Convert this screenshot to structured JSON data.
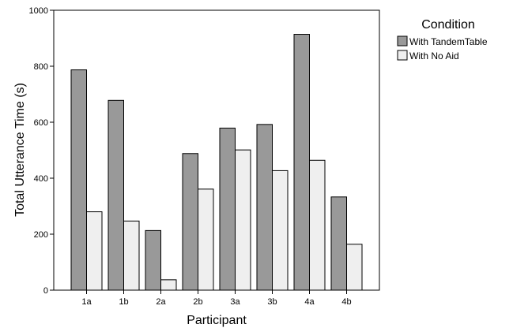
{
  "chart_data": {
    "type": "bar",
    "xlabel": "Participant",
    "ylabel": "Total Utterance Time (s)",
    "categories": [
      "1a",
      "1b",
      "2a",
      "2b",
      "3a",
      "3b",
      "4a",
      "4b"
    ],
    "ylim": [
      0,
      1000
    ],
    "yticks": [
      0,
      200,
      400,
      600,
      800,
      1000
    ],
    "grid": false,
    "legend": {
      "title": "Condition",
      "placement": "top-right outside"
    },
    "series": [
      {
        "name": "With TandemTable",
        "color": "#999999",
        "values": [
          787,
          678,
          213,
          488,
          579,
          592,
          914,
          333
        ]
      },
      {
        "name": "With No Aid",
        "color": "#efefef",
        "values": [
          280,
          247,
          37,
          361,
          501,
          427,
          464,
          164
        ]
      }
    ]
  }
}
